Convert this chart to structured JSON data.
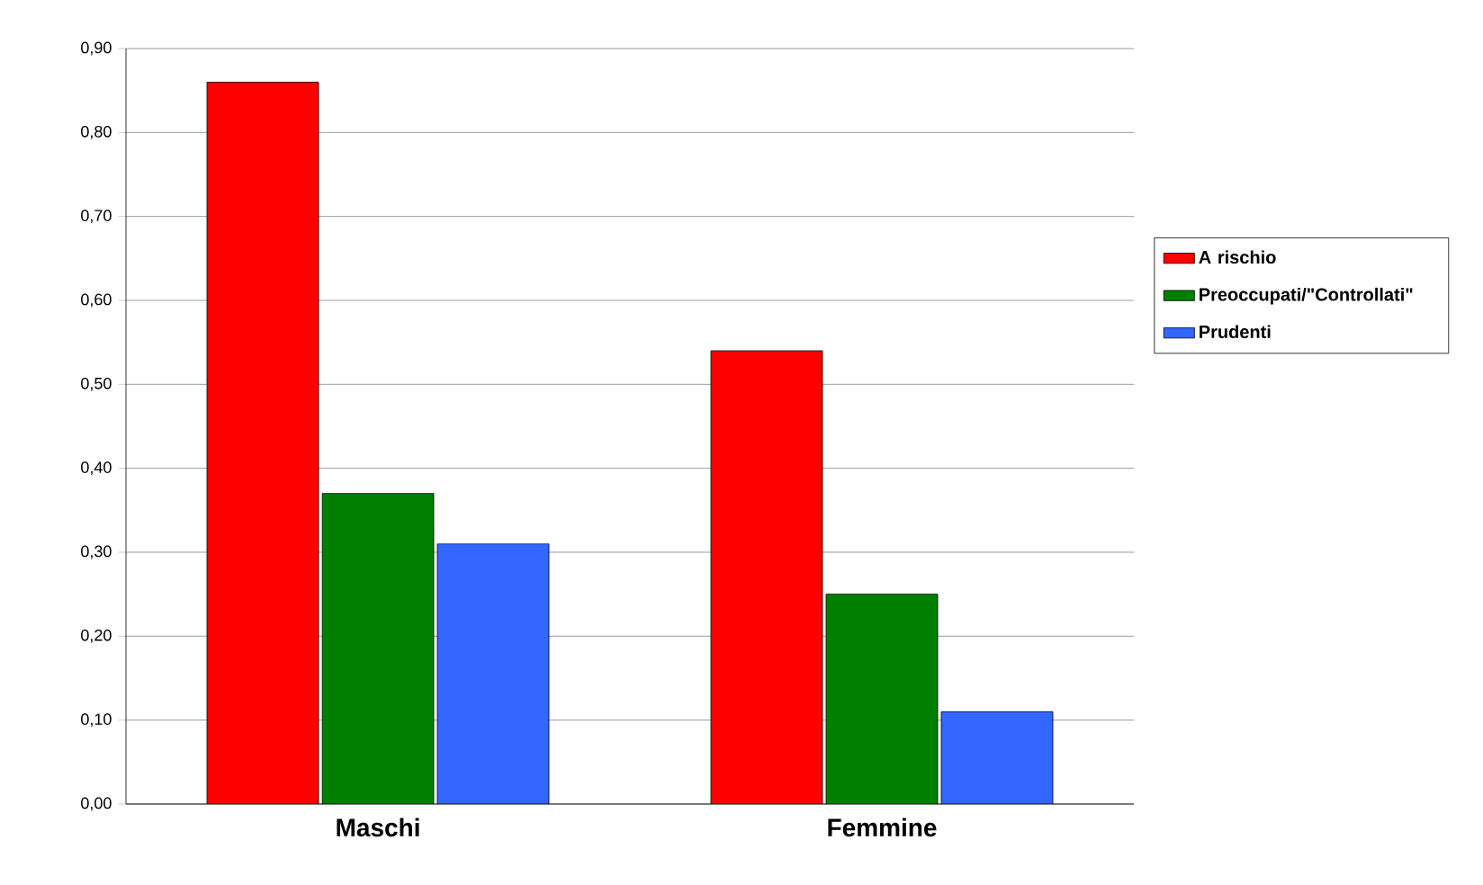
{
  "chart_data": {
    "type": "bar",
    "categories": [
      "Maschi",
      "Femmine"
    ],
    "series": [
      {
        "name": "A rischio",
        "color": "#ff0000",
        "values": [
          0.86,
          0.54
        ]
      },
      {
        "name": "Preoccupati/\"Controllati\"",
        "color": "#008000",
        "values": [
          0.37,
          0.25
        ]
      },
      {
        "name": "Prudenti",
        "color": "#3366ff",
        "values": [
          0.31,
          0.11
        ]
      }
    ],
    "ylim": [
      0,
      0.9
    ],
    "yticks": [
      {
        "value": 0,
        "label": "0,00"
      },
      {
        "value": 0.1,
        "label": "0,10"
      },
      {
        "value": 0.2,
        "label": "0,20"
      },
      {
        "value": 0.3,
        "label": "0,30"
      },
      {
        "value": 0.4,
        "label": "0,40"
      },
      {
        "value": 0.5,
        "label": "0,50"
      },
      {
        "value": 0.6,
        "label": "0,60"
      },
      {
        "value": 0.7,
        "label": "0,70"
      },
      {
        "value": 0.8,
        "label": "0,80"
      },
      {
        "value": 0.9,
        "label": "0,90"
      }
    ],
    "grid": "y",
    "legend": "right"
  }
}
